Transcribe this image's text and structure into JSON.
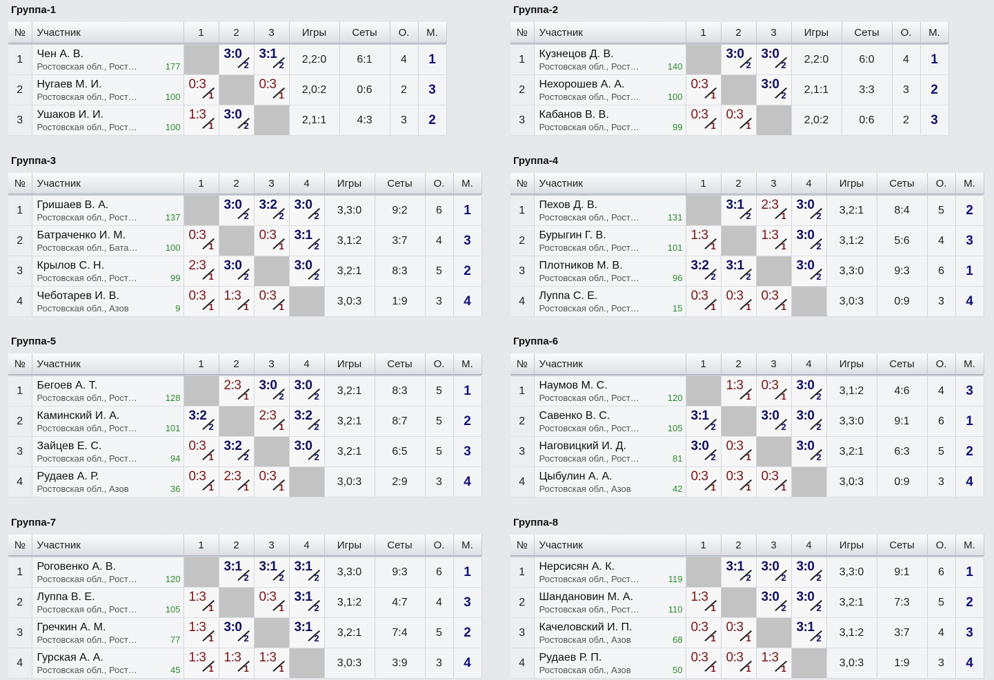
{
  "headers": {
    "num": "№",
    "name": "Участник",
    "games": "Игры",
    "sets": "Сеты",
    "points": "О.",
    "place": "М."
  },
  "groups": [
    {
      "title": "Группа-1",
      "players": [
        {
          "num": "1",
          "name": "Чен А. В.",
          "region": "Ростовская обл., Рост…",
          "rating": "177",
          "results": [
            null,
            {
              "score": "3:0",
              "pts": "2",
              "win": true
            },
            {
              "score": "3:1",
              "pts": "2",
              "win": true
            }
          ],
          "games": "2,2:0",
          "sets": "6:1",
          "points": "4",
          "place": "1"
        },
        {
          "num": "2",
          "name": "Нугаев М. И.",
          "region": "Ростовская обл., Рост…",
          "rating": "100",
          "results": [
            {
              "score": "0:3",
              "pts": "1",
              "win": false
            },
            null,
            {
              "score": "0:3",
              "pts": "1",
              "win": false
            }
          ],
          "games": "2,0:2",
          "sets": "0:6",
          "points": "2",
          "place": "3"
        },
        {
          "num": "3",
          "name": "Ушаков И. И.",
          "region": "Ростовская обл., Рост…",
          "rating": "100",
          "results": [
            {
              "score": "1:3",
              "pts": "1",
              "win": false
            },
            {
              "score": "3:0",
              "pts": "2",
              "win": true
            },
            null
          ],
          "games": "2,1:1",
          "sets": "4:3",
          "points": "3",
          "place": "2"
        }
      ]
    },
    {
      "title": "Группа-2",
      "players": [
        {
          "num": "1",
          "name": "Кузнецов Д. В.",
          "region": "Ростовская обл., Рост…",
          "rating": "140",
          "results": [
            null,
            {
              "score": "3:0",
              "pts": "2",
              "win": true
            },
            {
              "score": "3:0",
              "pts": "2",
              "win": true
            }
          ],
          "games": "2,2:0",
          "sets": "6:0",
          "points": "4",
          "place": "1"
        },
        {
          "num": "2",
          "name": "Нехорошев А. А.",
          "region": "Ростовская обл., Рост…",
          "rating": "100",
          "results": [
            {
              "score": "0:3",
              "pts": "1",
              "win": false
            },
            null,
            {
              "score": "3:0",
              "pts": "2",
              "win": true
            }
          ],
          "games": "2,1:1",
          "sets": "3:3",
          "points": "3",
          "place": "2"
        },
        {
          "num": "3",
          "name": "Кабанов В. В.",
          "region": "Ростовская обл., Рост…",
          "rating": "99",
          "results": [
            {
              "score": "0:3",
              "pts": "1",
              "win": false
            },
            {
              "score": "0:3",
              "pts": "1",
              "win": false
            },
            null
          ],
          "games": "2,0:2",
          "sets": "0:6",
          "points": "2",
          "place": "3"
        }
      ]
    },
    {
      "title": "Группа-3",
      "players": [
        {
          "num": "1",
          "name": "Гришаев В. А.",
          "region": "Ростовская обл., Рост…",
          "rating": "137",
          "results": [
            null,
            {
              "score": "3:0",
              "pts": "2",
              "win": true
            },
            {
              "score": "3:2",
              "pts": "2",
              "win": true
            },
            {
              "score": "3:0",
              "pts": "2",
              "win": true
            }
          ],
          "games": "3,3:0",
          "sets": "9:2",
          "points": "6",
          "place": "1"
        },
        {
          "num": "2",
          "name": "Батраченко И. М.",
          "region": "Ростовская обл., Бата…",
          "rating": "100",
          "results": [
            {
              "score": "0:3",
              "pts": "1",
              "win": false
            },
            null,
            {
              "score": "0:3",
              "pts": "1",
              "win": false
            },
            {
              "score": "3:1",
              "pts": "2",
              "win": true
            }
          ],
          "games": "3,1:2",
          "sets": "3:7",
          "points": "4",
          "place": "3"
        },
        {
          "num": "3",
          "name": "Крылов С. Н.",
          "region": "Ростовская обл., Рост…",
          "rating": "99",
          "results": [
            {
              "score": "2:3",
              "pts": "1",
              "win": false
            },
            {
              "score": "3:0",
              "pts": "2",
              "win": true
            },
            null,
            {
              "score": "3:0",
              "pts": "2",
              "win": true
            }
          ],
          "games": "3,2:1",
          "sets": "8:3",
          "points": "5",
          "place": "2"
        },
        {
          "num": "4",
          "name": "Чеботарев И. В.",
          "region": "Ростовская обл., Азов",
          "rating": "9",
          "results": [
            {
              "score": "0:3",
              "pts": "1",
              "win": false
            },
            {
              "score": "1:3",
              "pts": "1",
              "win": false
            },
            {
              "score": "0:3",
              "pts": "1",
              "win": false
            },
            null
          ],
          "games": "3,0:3",
          "sets": "1:9",
          "points": "3",
          "place": "4"
        }
      ]
    },
    {
      "title": "Группа-4",
      "players": [
        {
          "num": "1",
          "name": "Пехов Д. В.",
          "region": "Ростовская обл., Рост…",
          "rating": "131",
          "results": [
            null,
            {
              "score": "3:1",
              "pts": "2",
              "win": true
            },
            {
              "score": "2:3",
              "pts": "1",
              "win": false
            },
            {
              "score": "3:0",
              "pts": "2",
              "win": true
            }
          ],
          "games": "3,2:1",
          "sets": "8:4",
          "points": "5",
          "place": "2"
        },
        {
          "num": "2",
          "name": "Бурыгин Г. В.",
          "region": "Ростовская обл., Рост…",
          "rating": "101",
          "results": [
            {
              "score": "1:3",
              "pts": "1",
              "win": false
            },
            null,
            {
              "score": "1:3",
              "pts": "1",
              "win": false
            },
            {
              "score": "3:0",
              "pts": "2",
              "win": true
            }
          ],
          "games": "3,1:2",
          "sets": "5:6",
          "points": "4",
          "place": "3"
        },
        {
          "num": "3",
          "name": "Плотников М. В.",
          "region": "Ростовская обл., Рост…",
          "rating": "96",
          "results": [
            {
              "score": "3:2",
              "pts": "2",
              "win": true
            },
            {
              "score": "3:1",
              "pts": "2",
              "win": true
            },
            null,
            {
              "score": "3:0",
              "pts": "2",
              "win": true
            }
          ],
          "games": "3,3:0",
          "sets": "9:3",
          "points": "6",
          "place": "1"
        },
        {
          "num": "4",
          "name": "Луппа С. Е.",
          "region": "Ростовская обл., Рост…",
          "rating": "15",
          "results": [
            {
              "score": "0:3",
              "pts": "1",
              "win": false
            },
            {
              "score": "0:3",
              "pts": "1",
              "win": false
            },
            {
              "score": "0:3",
              "pts": "1",
              "win": false
            },
            null
          ],
          "games": "3,0:3",
          "sets": "0:9",
          "points": "3",
          "place": "4"
        }
      ]
    },
    {
      "title": "Группа-5",
      "players": [
        {
          "num": "1",
          "name": "Бегоев А. Т.",
          "region": "Ростовская обл., Рост…",
          "rating": "128",
          "results": [
            null,
            {
              "score": "2:3",
              "pts": "1",
              "win": false
            },
            {
              "score": "3:0",
              "pts": "2",
              "win": true
            },
            {
              "score": "3:0",
              "pts": "2",
              "win": true
            }
          ],
          "games": "3,2:1",
          "sets": "8:3",
          "points": "5",
          "place": "1"
        },
        {
          "num": "2",
          "name": "Каминский И. А.",
          "region": "Ростовская обл., Рост…",
          "rating": "101",
          "results": [
            {
              "score": "3:2",
              "pts": "2",
              "win": true
            },
            null,
            {
              "score": "2:3",
              "pts": "1",
              "win": false
            },
            {
              "score": "3:2",
              "pts": "2",
              "win": true
            }
          ],
          "games": "3,2:1",
          "sets": "8:7",
          "points": "5",
          "place": "2"
        },
        {
          "num": "3",
          "name": "Зайцев Е. С.",
          "region": "Ростовская обл., Рост…",
          "rating": "94",
          "results": [
            {
              "score": "0:3",
              "pts": "1",
              "win": false
            },
            {
              "score": "3:2",
              "pts": "2",
              "win": true
            },
            null,
            {
              "score": "3:0",
              "pts": "2",
              "win": true
            }
          ],
          "games": "3,2:1",
          "sets": "6:5",
          "points": "5",
          "place": "3"
        },
        {
          "num": "4",
          "name": "Рудаев А. Р.",
          "region": "Ростовская обл., Азов",
          "rating": "36",
          "results": [
            {
              "score": "0:3",
              "pts": "1",
              "win": false
            },
            {
              "score": "2:3",
              "pts": "1",
              "win": false
            },
            {
              "score": "0:3",
              "pts": "1",
              "win": false
            },
            null
          ],
          "games": "3,0:3",
          "sets": "2:9",
          "points": "3",
          "place": "4"
        }
      ]
    },
    {
      "title": "Группа-6",
      "players": [
        {
          "num": "1",
          "name": "Наумов М. С.",
          "region": "Ростовская обл., Рост…",
          "rating": "120",
          "results": [
            null,
            {
              "score": "1:3",
              "pts": "1",
              "win": false
            },
            {
              "score": "0:3",
              "pts": "1",
              "win": false
            },
            {
              "score": "3:0",
              "pts": "2",
              "win": true
            }
          ],
          "games": "3,1:2",
          "sets": "4:6",
          "points": "4",
          "place": "3"
        },
        {
          "num": "2",
          "name": "Савенко В. С.",
          "region": "Ростовская обл., Рост…",
          "rating": "105",
          "results": [
            {
              "score": "3:1",
              "pts": "2",
              "win": true
            },
            null,
            {
              "score": "3:0",
              "pts": "2",
              "win": true
            },
            {
              "score": "3:0",
              "pts": "2",
              "win": true
            }
          ],
          "games": "3,3:0",
          "sets": "9:1",
          "points": "6",
          "place": "1"
        },
        {
          "num": "3",
          "name": "Наговицкий И. Д.",
          "region": "Ростовская обл., Рост…",
          "rating": "81",
          "results": [
            {
              "score": "3:0",
              "pts": "2",
              "win": true
            },
            {
              "score": "0:3",
              "pts": "1",
              "win": false
            },
            null,
            {
              "score": "3:0",
              "pts": "2",
              "win": true
            }
          ],
          "games": "3,2:1",
          "sets": "6:3",
          "points": "5",
          "place": "2"
        },
        {
          "num": "4",
          "name": "Цыбулин А. А.",
          "region": "Ростовская обл., Азов",
          "rating": "42",
          "results": [
            {
              "score": "0:3",
              "pts": "1",
              "win": false
            },
            {
              "score": "0:3",
              "pts": "1",
              "win": false
            },
            {
              "score": "0:3",
              "pts": "1",
              "win": false
            },
            null
          ],
          "games": "3,0:3",
          "sets": "0:9",
          "points": "3",
          "place": "4"
        }
      ]
    },
    {
      "title": "Группа-7",
      "players": [
        {
          "num": "1",
          "name": "Роговенко А. В.",
          "region": "Ростовская обл., Рост…",
          "rating": "120",
          "results": [
            null,
            {
              "score": "3:1",
              "pts": "2",
              "win": true
            },
            {
              "score": "3:1",
              "pts": "2",
              "win": true
            },
            {
              "score": "3:1",
              "pts": "2",
              "win": true
            }
          ],
          "games": "3,3:0",
          "sets": "9:3",
          "points": "6",
          "place": "1"
        },
        {
          "num": "2",
          "name": "Луппа В. Е.",
          "region": "Ростовская обл., Рост…",
          "rating": "105",
          "results": [
            {
              "score": "1:3",
              "pts": "1",
              "win": false
            },
            null,
            {
              "score": "0:3",
              "pts": "1",
              "win": false
            },
            {
              "score": "3:1",
              "pts": "2",
              "win": true
            }
          ],
          "games": "3,1:2",
          "sets": "4:7",
          "points": "4",
          "place": "3"
        },
        {
          "num": "3",
          "name": "Гречкин А. М.",
          "region": "Ростовская обл., Рост…",
          "rating": "77",
          "results": [
            {
              "score": "1:3",
              "pts": "1",
              "win": false
            },
            {
              "score": "3:0",
              "pts": "2",
              "win": true
            },
            null,
            {
              "score": "3:1",
              "pts": "2",
              "win": true
            }
          ],
          "games": "3,2:1",
          "sets": "7:4",
          "points": "5",
          "place": "2"
        },
        {
          "num": "4",
          "name": "Гурская А. А.",
          "region": "Ростовская обл., Рост…",
          "rating": "45",
          "results": [
            {
              "score": "1:3",
              "pts": "1",
              "win": false
            },
            {
              "score": "1:3",
              "pts": "1",
              "win": false
            },
            {
              "score": "1:3",
              "pts": "1",
              "win": false
            },
            null
          ],
          "games": "3,0:3",
          "sets": "3:9",
          "points": "3",
          "place": "4"
        }
      ]
    },
    {
      "title": "Группа-8",
      "players": [
        {
          "num": "1",
          "name": "Нерсисян А. К.",
          "region": "Ростовская обл., Рост…",
          "rating": "119",
          "results": [
            null,
            {
              "score": "3:1",
              "pts": "2",
              "win": true
            },
            {
              "score": "3:0",
              "pts": "2",
              "win": true
            },
            {
              "score": "3:0",
              "pts": "2",
              "win": true
            }
          ],
          "games": "3,3:0",
          "sets": "9:1",
          "points": "6",
          "place": "1"
        },
        {
          "num": "2",
          "name": "Шандановин М. А.",
          "region": "Ростовская обл., Рост…",
          "rating": "110",
          "results": [
            {
              "score": "1:3",
              "pts": "1",
              "win": false
            },
            null,
            {
              "score": "3:0",
              "pts": "2",
              "win": true
            },
            {
              "score": "3:0",
              "pts": "2",
              "win": true
            }
          ],
          "games": "3,2:1",
          "sets": "7:3",
          "points": "5",
          "place": "2"
        },
        {
          "num": "3",
          "name": "Качеловский И. П.",
          "region": "Ростовская обл., Азов",
          "rating": "68",
          "results": [
            {
              "score": "0:3",
              "pts": "1",
              "win": false
            },
            {
              "score": "0:3",
              "pts": "1",
              "win": false
            },
            null,
            {
              "score": "3:1",
              "pts": "2",
              "win": true
            }
          ],
          "games": "3,1:2",
          "sets": "3:7",
          "points": "4",
          "place": "3"
        },
        {
          "num": "4",
          "name": "Рудаев Р. П.",
          "region": "Ростовская обл., Азов",
          "rating": "50",
          "results": [
            {
              "score": "0:3",
              "pts": "1",
              "win": false
            },
            {
              "score": "0:3",
              "pts": "1",
              "win": false
            },
            {
              "score": "1:3",
              "pts": "1",
              "win": false
            },
            null
          ],
          "games": "3,0:3",
          "sets": "1:9",
          "points": "3",
          "place": "4"
        }
      ]
    }
  ]
}
